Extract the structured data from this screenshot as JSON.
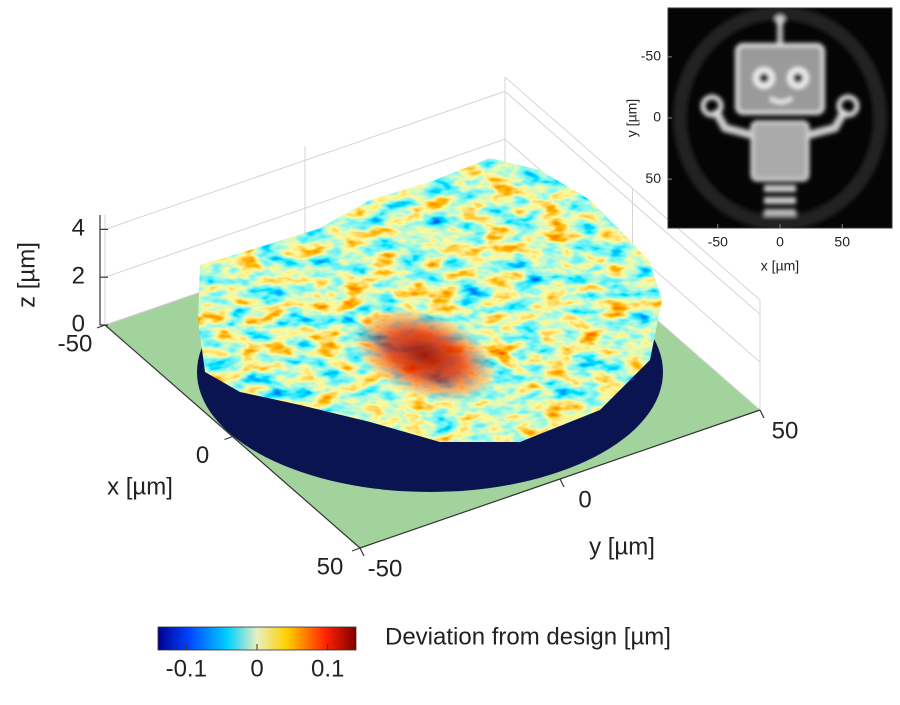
{
  "chart_data": [
    {
      "type": "surface",
      "xlabel": "x [µm]",
      "ylabel": "y [µm]",
      "zlabel": "z [µm]",
      "xlim": [
        -50,
        50
      ],
      "ylim": [
        -50,
        50
      ],
      "zlim": [
        0,
        4.6
      ],
      "xticks": [
        -50,
        0,
        50
      ],
      "yticks": [
        -50,
        0,
        50
      ],
      "zticks": [
        0,
        2,
        4
      ],
      "grid": true,
      "floor_color": "#a3d39c",
      "colorbar": {
        "label": "Deviation from design [µm]",
        "lim": [
          -0.14,
          0.14
        ],
        "ticks": [
          -0.1,
          0,
          0.1
        ],
        "colormap": "jet"
      }
    },
    {
      "type": "image",
      "xlabel": "x [µm]",
      "ylabel": "y [µm]",
      "xlim": [
        -90,
        90
      ],
      "ylim": [
        -90,
        90
      ],
      "xticks": [
        -50,
        0,
        50
      ],
      "yticks": [
        -50,
        0,
        50
      ]
    }
  ]
}
